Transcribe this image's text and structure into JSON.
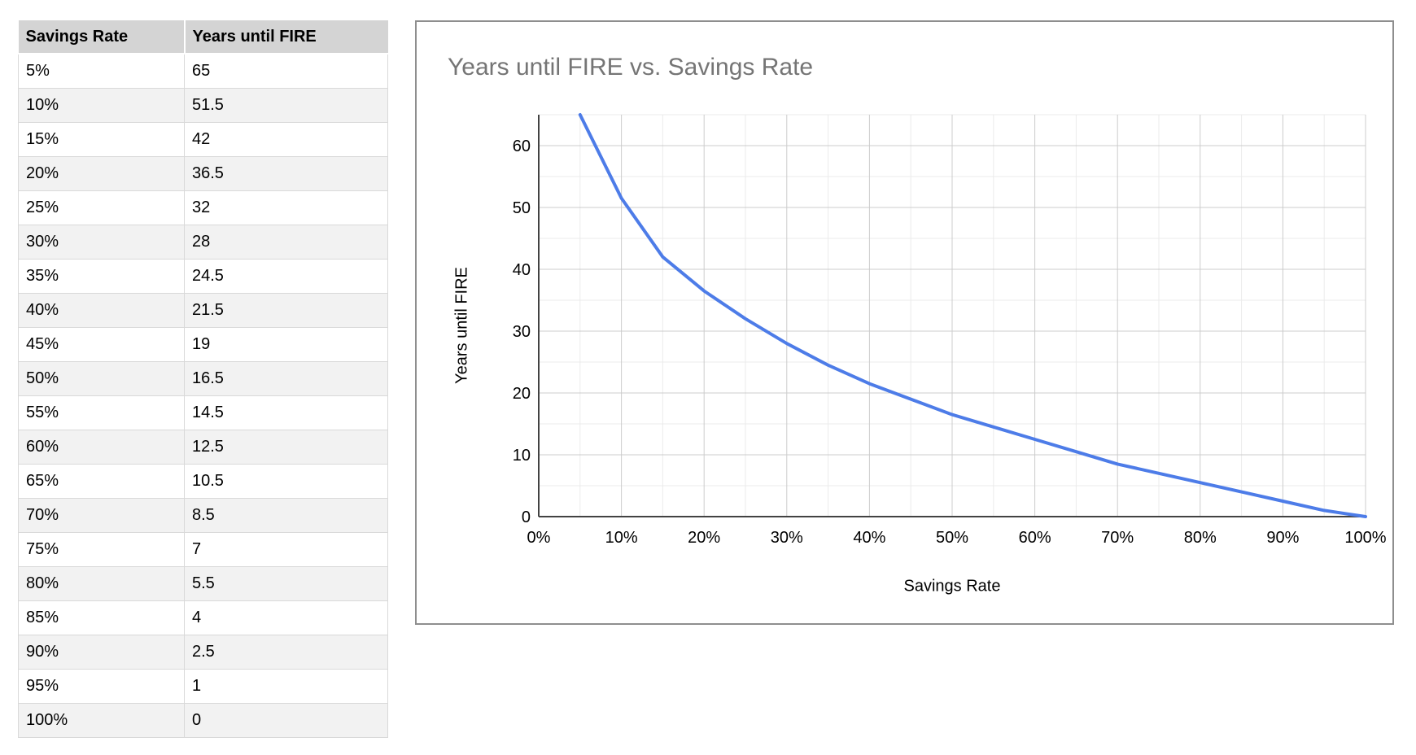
{
  "table": {
    "columns": [
      "Savings Rate",
      "Years until FIRE"
    ],
    "rows": [
      [
        "5%",
        "65"
      ],
      [
        "10%",
        "51.5"
      ],
      [
        "15%",
        "42"
      ],
      [
        "20%",
        "36.5"
      ],
      [
        "25%",
        "32"
      ],
      [
        "30%",
        "28"
      ],
      [
        "35%",
        "24.5"
      ],
      [
        "40%",
        "21.5"
      ],
      [
        "45%",
        "19"
      ],
      [
        "50%",
        "16.5"
      ],
      [
        "55%",
        "14.5"
      ],
      [
        "60%",
        "12.5"
      ],
      [
        "65%",
        "10.5"
      ],
      [
        "70%",
        "8.5"
      ],
      [
        "75%",
        "7"
      ],
      [
        "80%",
        "5.5"
      ],
      [
        "85%",
        "4"
      ],
      [
        "90%",
        "2.5"
      ],
      [
        "95%",
        "1"
      ],
      [
        "100%",
        "0"
      ]
    ],
    "colors": {
      "header_bg": "#d4d4d4",
      "stripe_bg": "#f2f2f2",
      "border": "#d9d9d9"
    }
  },
  "chart": {
    "title": "Years until FIRE vs. Savings Rate",
    "x_axis_title": "Savings Rate",
    "y_axis_title": "Years until FIRE",
    "colors": {
      "line": "#4d7ce8",
      "grid_major": "#cccccc",
      "grid_minor": "#ebebeb",
      "axis": "#424242",
      "title_text": "#757575",
      "panel_border": "#8e8e8e"
    }
  },
  "chart_data": {
    "type": "line",
    "title": "Years until FIRE vs. Savings Rate",
    "xlabel": "Savings Rate",
    "ylabel": "Years until FIRE",
    "x": [
      5,
      10,
      15,
      20,
      25,
      30,
      35,
      40,
      45,
      50,
      55,
      60,
      65,
      70,
      75,
      80,
      85,
      90,
      95,
      100
    ],
    "y": [
      65,
      51.5,
      42,
      36.5,
      32,
      28,
      24.5,
      21.5,
      19,
      16.5,
      14.5,
      12.5,
      10.5,
      8.5,
      7,
      5.5,
      4,
      2.5,
      1,
      0
    ],
    "xlim": [
      0,
      100
    ],
    "ylim": [
      0,
      65
    ],
    "x_ticks": [
      "0%",
      "10%",
      "20%",
      "30%",
      "40%",
      "50%",
      "60%",
      "70%",
      "80%",
      "90%",
      "100%"
    ],
    "x_tick_values": [
      0,
      10,
      20,
      30,
      40,
      50,
      60,
      70,
      80,
      90,
      100
    ],
    "y_ticks": [
      0,
      10,
      20,
      30,
      40,
      50,
      60
    ],
    "grid": "major and minor (every 5 units / 5%)",
    "legend_position": "none",
    "series_color": "#4d7ce8"
  }
}
